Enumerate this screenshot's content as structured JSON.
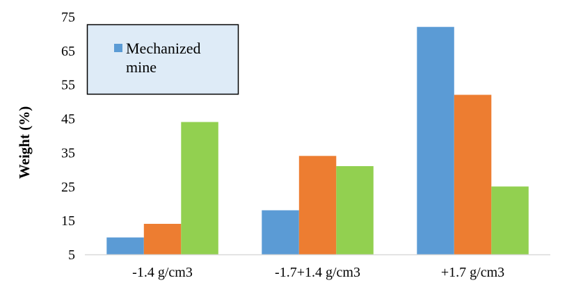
{
  "chart_data": {
    "type": "bar",
    "title": "",
    "xlabel": "",
    "ylabel": "Weight (%)",
    "ylim": [
      5,
      75
    ],
    "yticks": [
      5,
      15,
      25,
      35,
      45,
      55,
      65,
      75
    ],
    "grid": false,
    "legend_placement": "top-left",
    "categories": [
      "-1.4 g/cm3",
      "-1.7+1.4 g/cm3",
      "+1.7 g/cm3"
    ],
    "series": [
      {
        "name": "Mechanized mine",
        "legend_lines": [
          "Mechanized",
          "mine"
        ],
        "color": "#5B9BD5",
        "values": [
          10,
          18,
          72
        ]
      },
      {
        "color": "#ED7D31",
        "values": [
          14,
          34,
          52
        ]
      },
      {
        "color": "#92D050",
        "values": [
          44,
          31,
          25
        ]
      }
    ],
    "legend_bg": "#DEEBF7"
  }
}
